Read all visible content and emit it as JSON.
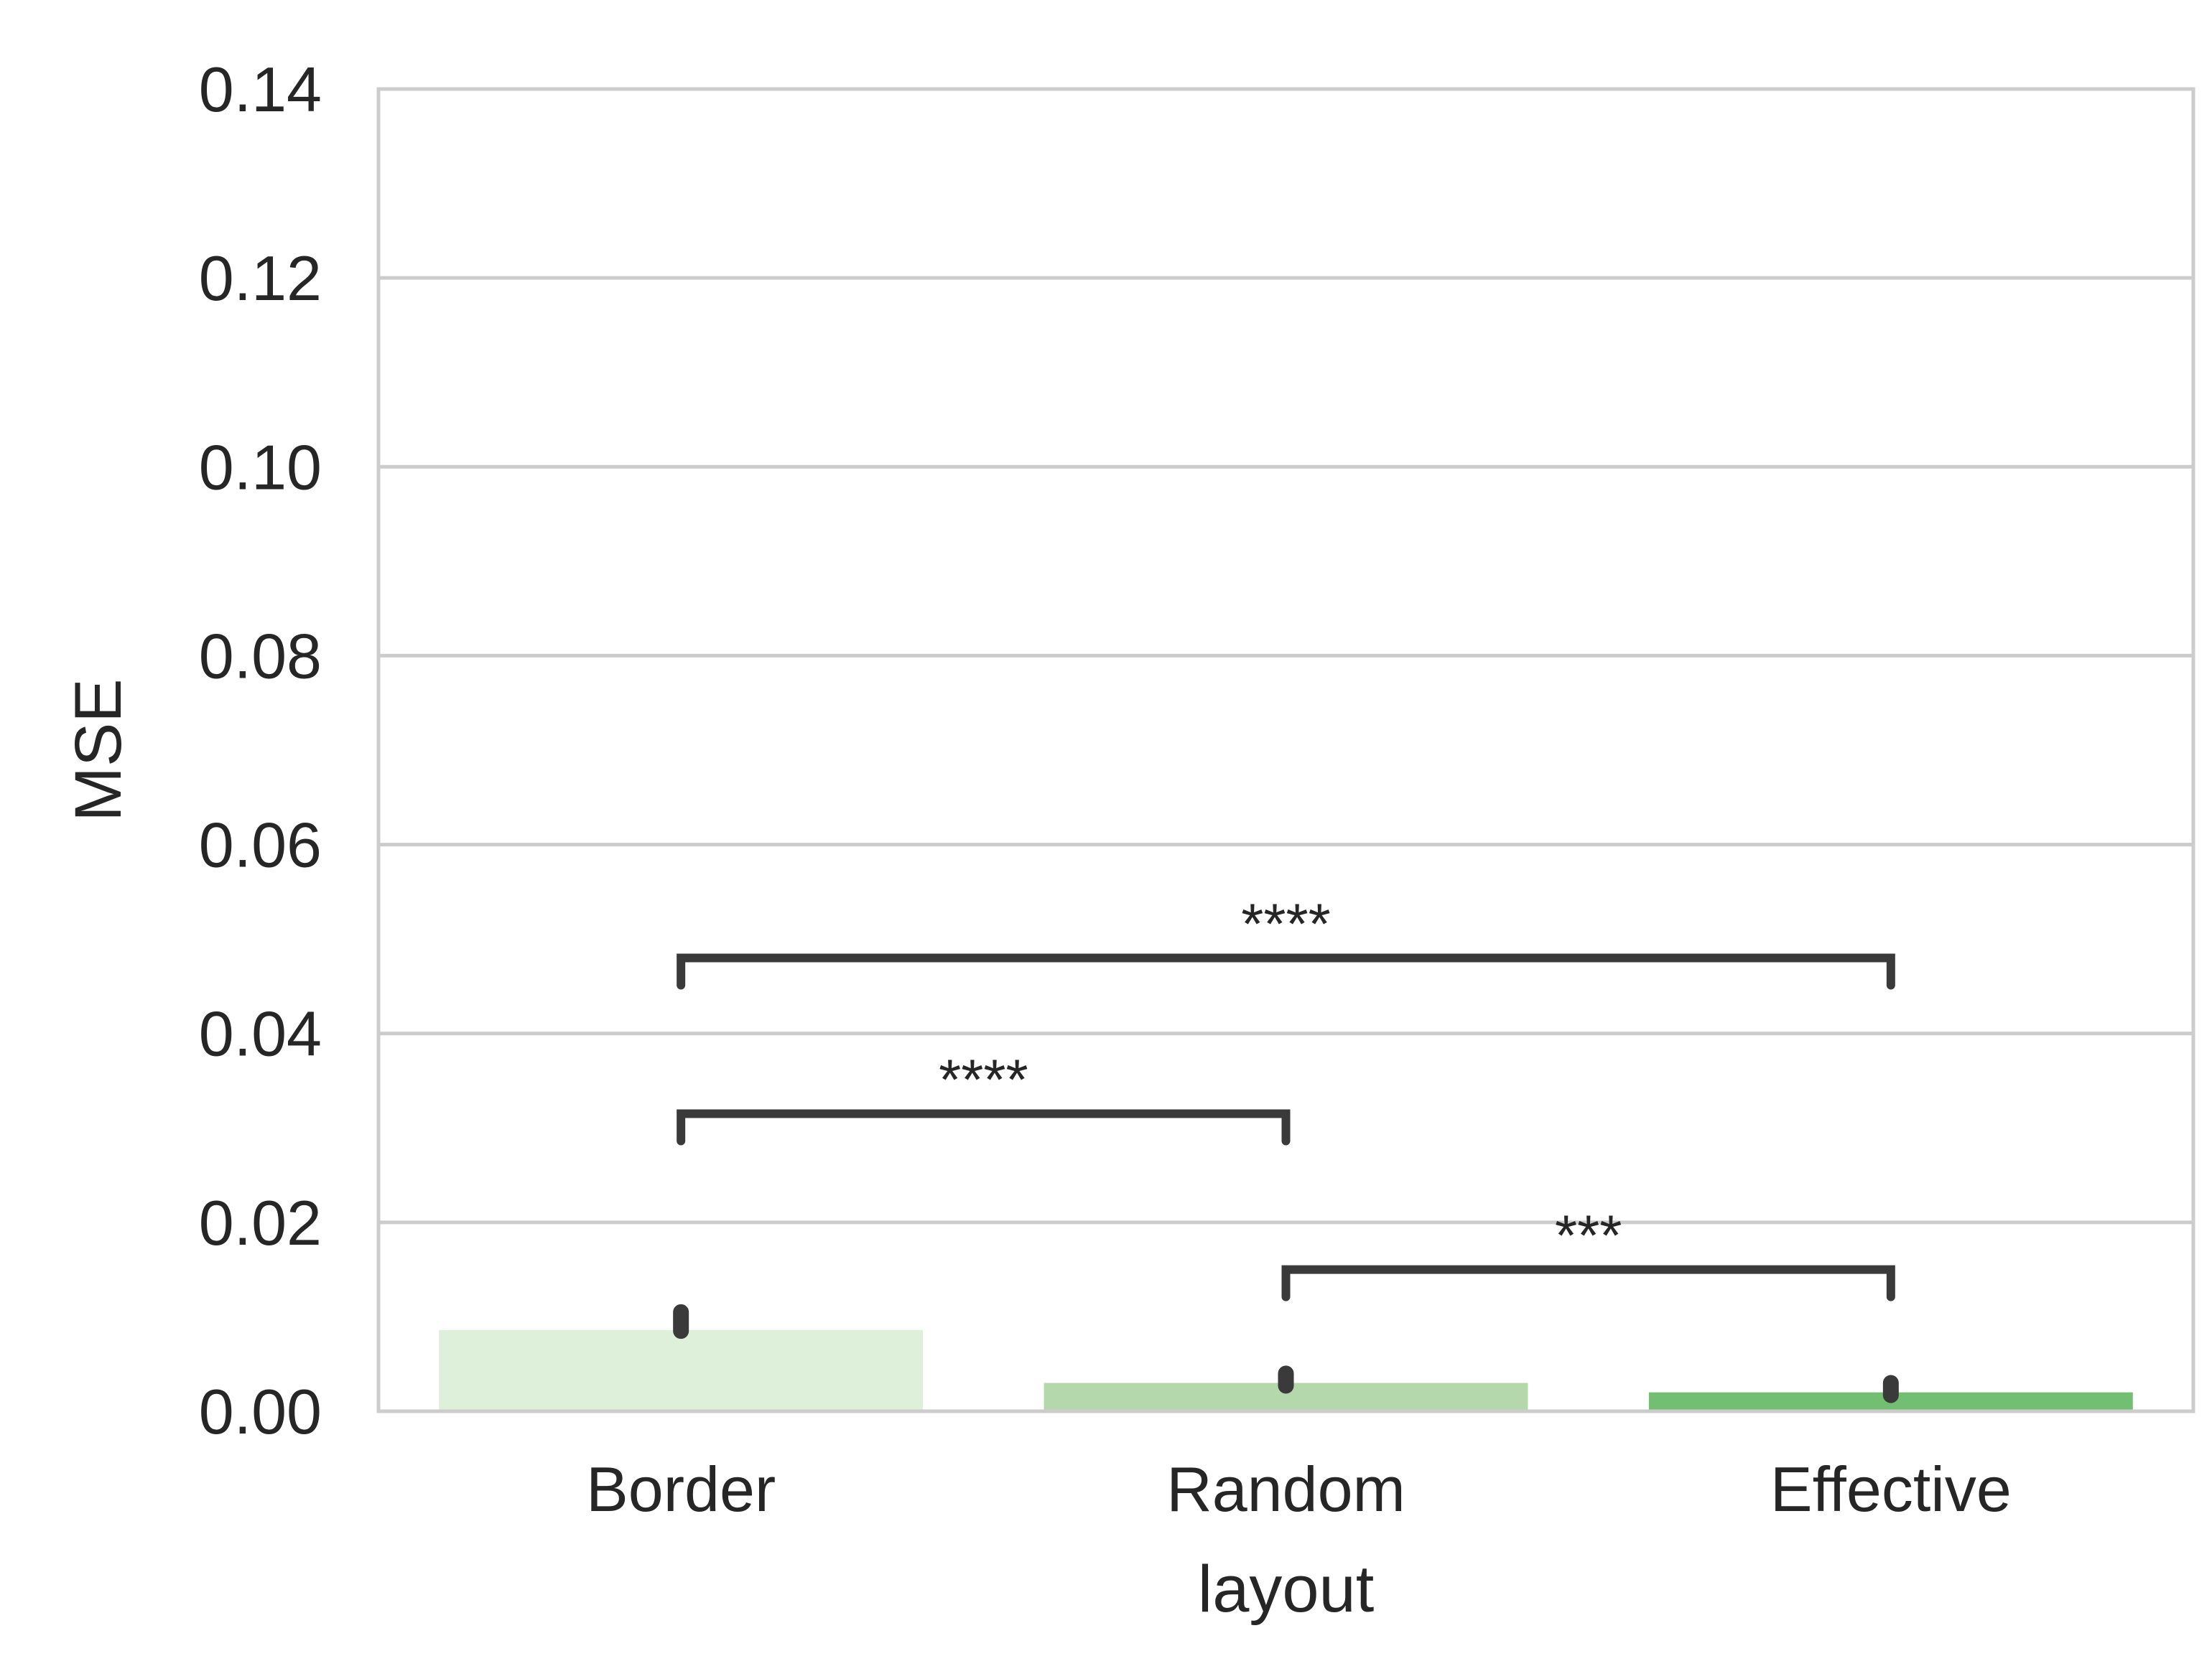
{
  "chart_data": {
    "type": "bar",
    "title": "",
    "xlabel": "layout",
    "ylabel": "MSE",
    "categories": [
      "Border",
      "Random",
      "Effective"
    ],
    "values": [
      0.0086,
      0.003,
      0.002
    ],
    "error_bars": [
      {
        "low": 0.0085,
        "high": 0.0105
      },
      {
        "low": 0.0027,
        "high": 0.004
      },
      {
        "low": 0.0017,
        "high": 0.003
      }
    ],
    "ylim": [
      0,
      0.14
    ],
    "yticks": [
      "0.00",
      "0.02",
      "0.04",
      "0.06",
      "0.08",
      "0.10",
      "0.12",
      "0.14"
    ],
    "grid": "horizontal",
    "colors": [
      "#dff0da",
      "#b4d8ac",
      "#72bf74"
    ],
    "error_color": "#3a3a3a",
    "grid_color": "#cccccc",
    "significance": [
      {
        "from": 0,
        "to": 2,
        "label": "****",
        "y": 0.048
      },
      {
        "from": 0,
        "to": 1,
        "label": "****",
        "y": 0.0315
      },
      {
        "from": 1,
        "to": 2,
        "label": "***",
        "y": 0.015
      }
    ]
  }
}
